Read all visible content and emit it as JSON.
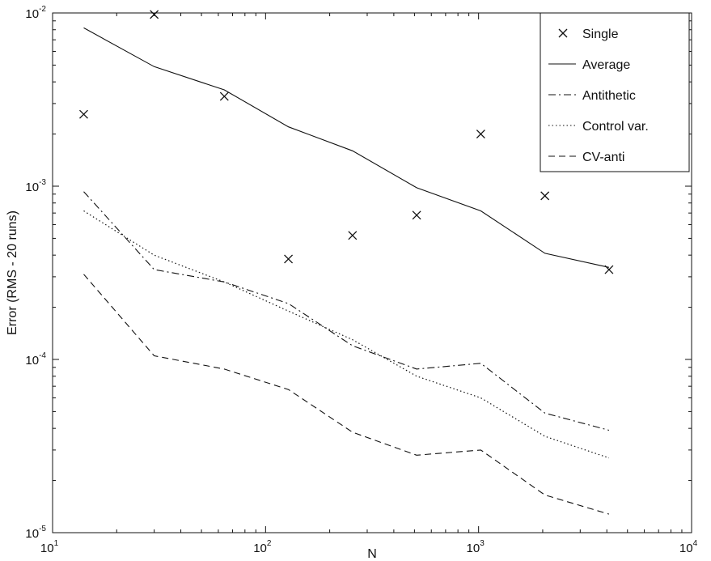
{
  "chart_data": {
    "type": "line",
    "xlabel": "N",
    "ylabel": "Error (RMS - 20 runs)",
    "x_scale": "log",
    "y_scale": "log",
    "xlim": [
      10,
      10000
    ],
    "ylim": [
      1e-05,
      0.01
    ],
    "x_ticks": [
      {
        "value": 10,
        "base": "10",
        "exp": "1"
      },
      {
        "value": 100,
        "base": "10",
        "exp": "2"
      },
      {
        "value": 1000,
        "base": "10",
        "exp": "3"
      },
      {
        "value": 10000,
        "base": "10",
        "exp": "4"
      }
    ],
    "y_ticks": [
      {
        "value": 1e-05,
        "base": "10",
        "exp": "-5"
      },
      {
        "value": 0.0001,
        "base": "10",
        "exp": "-4"
      },
      {
        "value": 0.001,
        "base": "10",
        "exp": "-3"
      },
      {
        "value": 0.01,
        "base": "10",
        "exp": "-2"
      }
    ],
    "grid": false,
    "legend_position": "top-right",
    "x": [
      14,
      30,
      64,
      128,
      256,
      512,
      1024,
      2048,
      4096
    ],
    "series": [
      {
        "name": "Single",
        "style": "marker-x",
        "values": [
          0.0026,
          0.0098,
          0.0033,
          0.00038,
          0.00052,
          0.00068,
          0.002,
          0.00088,
          0.00033
        ]
      },
      {
        "name": "Average",
        "style": "solid",
        "values": [
          0.0082,
          0.0049,
          0.0036,
          0.0022,
          0.0016,
          0.00098,
          0.00072,
          0.00041,
          0.00034
        ]
      },
      {
        "name": "Antithetic",
        "style": "dashdot",
        "values": [
          0.00093,
          0.00033,
          0.00028,
          0.00021,
          0.00012,
          8.8e-05,
          9.5e-05,
          4.9e-05,
          3.9e-05
        ]
      },
      {
        "name": "Control var.",
        "style": "dotted",
        "values": [
          0.00072,
          0.0004,
          0.00028,
          0.00019,
          0.00013,
          8e-05,
          6e-05,
          3.6e-05,
          2.7e-05
        ]
      },
      {
        "name": "CV-anti",
        "style": "dashed",
        "values": [
          0.00031,
          0.000105,
          8.8e-05,
          6.7e-05,
          3.8e-05,
          2.8e-05,
          3e-05,
          1.65e-05,
          1.28e-05
        ]
      }
    ],
    "colors": {
      "line": "#111111",
      "axes": "#111111",
      "background": "#ffffff"
    }
  }
}
